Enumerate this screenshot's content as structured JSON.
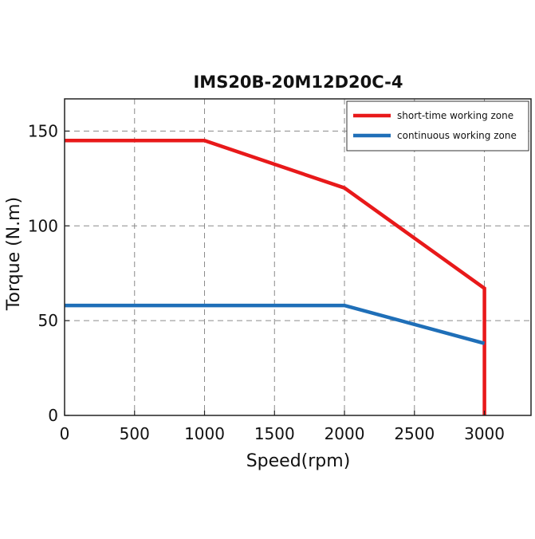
{
  "chart_data": {
    "type": "line",
    "title": "IMS20B-20M12D20C-4",
    "xlabel": "Speed(rpm)",
    "ylabel": "Torque (N.m)",
    "xlim": [
      0,
      3333
    ],
    "ylim": [
      0,
      167
    ],
    "xticks": [
      0,
      500,
      1000,
      1500,
      2000,
      2500,
      3000
    ],
    "yticks": [
      0,
      50,
      100,
      150
    ],
    "grid": true,
    "legend_position": "top-right",
    "series": [
      {
        "name": "short-time working zone",
        "color": "#e8191a",
        "x": [
          0,
          1000,
          2000,
          3000,
          3000
        ],
        "y": [
          145,
          145,
          120,
          67,
          0
        ]
      },
      {
        "name": "continuous working zone",
        "color": "#1f6fb8",
        "x": [
          0,
          2000,
          3000
        ],
        "y": [
          58,
          58,
          38
        ]
      }
    ]
  }
}
